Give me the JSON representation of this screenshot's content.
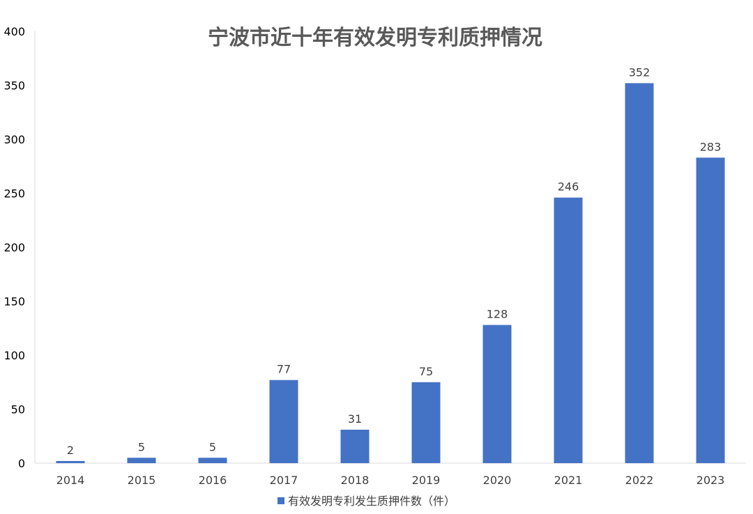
{
  "chart_data": {
    "type": "bar",
    "title": "宁波市近十年有效发明专利质押情况",
    "xlabel": "",
    "ylabel": "",
    "categories": [
      "2014",
      "2015",
      "2016",
      "2017",
      "2018",
      "2019",
      "2020",
      "2021",
      "2022",
      "2023"
    ],
    "series": [
      {
        "name": "有效发明专利发生质押件数（件）",
        "values": [
          2,
          5,
          5,
          77,
          31,
          75,
          128,
          246,
          352,
          283
        ],
        "color": "#4472C4"
      }
    ],
    "ylim": [
      0,
      400
    ],
    "yticks": [
      0,
      50,
      100,
      150,
      200,
      250,
      300,
      350,
      400
    ],
    "data_labels": true,
    "grid": false,
    "legend_position": "bottom-center"
  }
}
